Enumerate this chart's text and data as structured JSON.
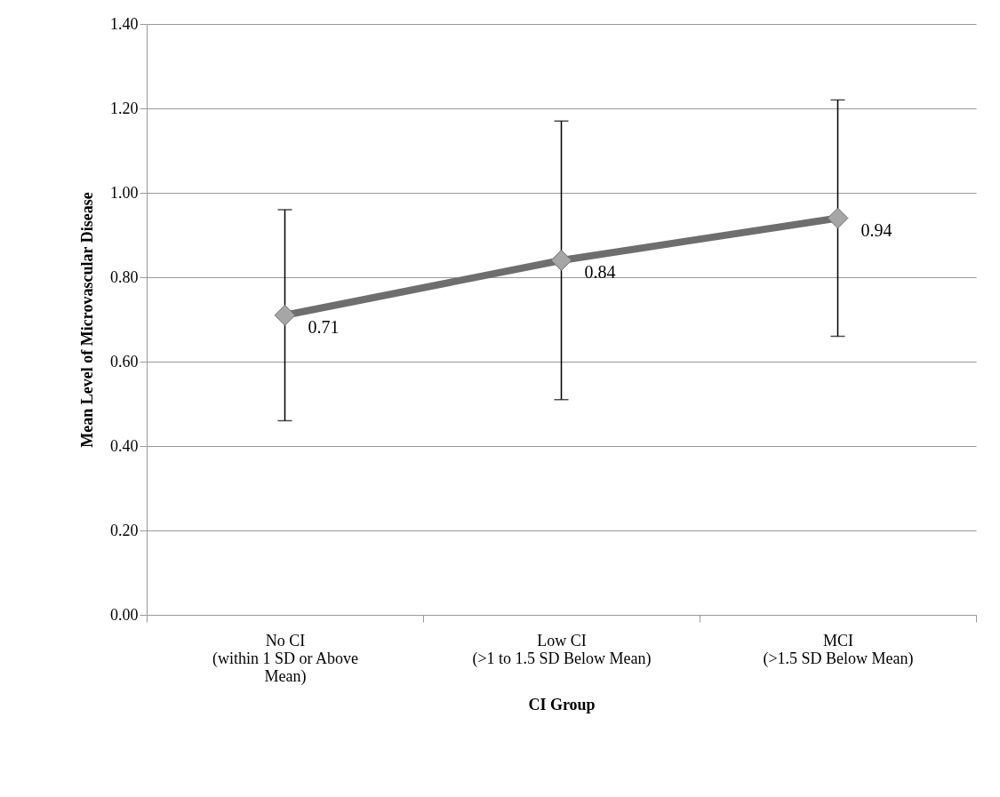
{
  "chart_data": {
    "type": "line",
    "xlabel": "CI Group",
    "ylabel": "Mean Level of  Microvascular Disease",
    "categories": [
      "No CI\n(within 1 SD or Above\nMean)",
      "Low CI\n(>1 to 1.5 SD Below Mean)",
      "MCI\n(>1.5 SD Below Mean)"
    ],
    "series": [
      {
        "color": "#6e6e6e",
        "values": [
          0.71,
          0.84,
          0.94
        ],
        "errors": [
          [
            0.46,
            0.96
          ],
          [
            0.51,
            1.17
          ],
          [
            0.66,
            1.22
          ]
        ]
      }
    ],
    "ylim": [
      0,
      1.4
    ],
    "yticks": [
      {
        "value": 0,
        "label": "0.00"
      },
      {
        "value": 0.2,
        "label": "0.20"
      },
      {
        "value": 0.4,
        "label": "0.40"
      },
      {
        "value": 0.6,
        "label": "0.60"
      },
      {
        "value": 0.8,
        "label": "0.80"
      },
      {
        "value": 1,
        "label": "1.00"
      },
      {
        "value": 1.2,
        "label": "1.20"
      },
      {
        "value": 1.4,
        "label": "1.40"
      }
    ],
    "grid": "y",
    "marker": "diamond",
    "line_style": "solid",
    "data_labels": true
  }
}
